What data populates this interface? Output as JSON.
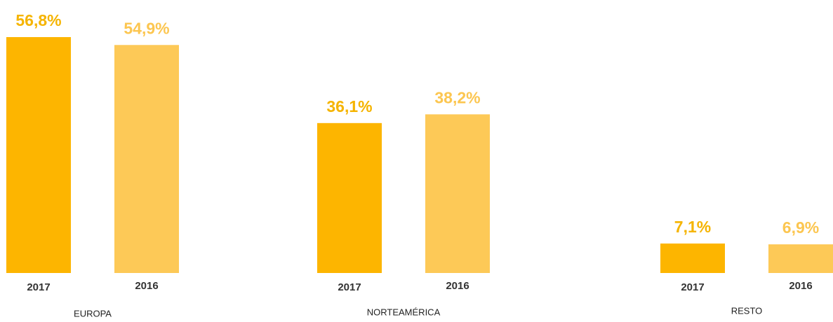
{
  "chart_data": {
    "type": "bar",
    "categories": [
      "EUROPA",
      "NORTEAMÉRICA",
      "RESTO"
    ],
    "series": [
      {
        "name": "2017",
        "color": "#fdb500",
        "values": [
          56.8,
          36.1,
          7.1
        ],
        "value_labels": [
          "56,8%",
          "36,1%",
          "7,1%"
        ]
      },
      {
        "name": "2016",
        "color": "#fdc957",
        "values": [
          54.9,
          38.2,
          6.9
        ],
        "value_labels": [
          "54,9%",
          "38,2%",
          "6,9%"
        ]
      }
    ]
  }
}
